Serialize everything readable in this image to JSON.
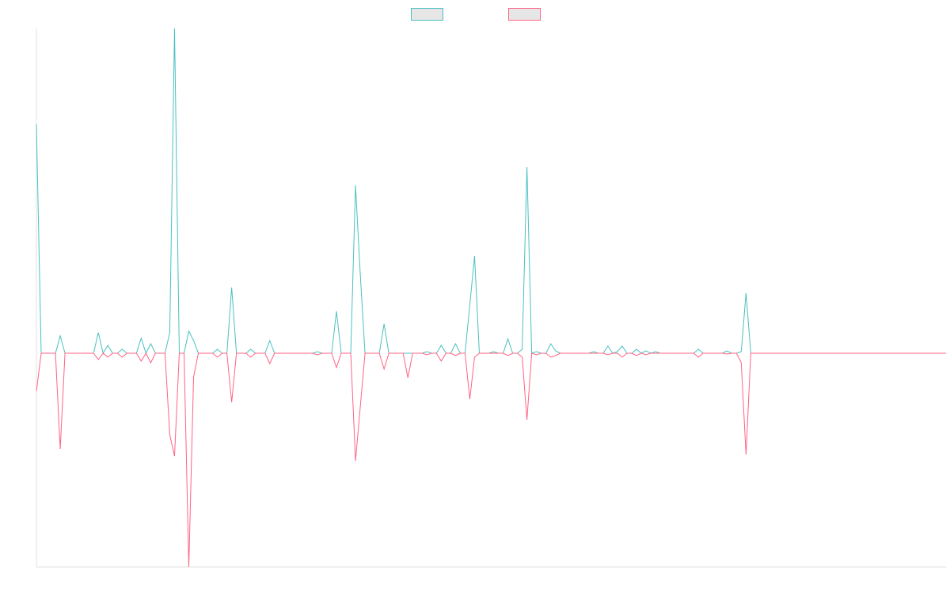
{
  "chart_data": {
    "type": "line",
    "categories": [
      null,
      null,
      null,
      null,
      null,
      null,
      null,
      null,
      null,
      null,
      null,
      null,
      null,
      null,
      null,
      null,
      null,
      null,
      null,
      null,
      null,
      null,
      null,
      null,
      null,
      null,
      null,
      null,
      null,
      null,
      null,
      null,
      null,
      null,
      null,
      null,
      null,
      null,
      null,
      null,
      null,
      null,
      null,
      null,
      null,
      null,
      null,
      null,
      null,
      null,
      null,
      null,
      null,
      null,
      null,
      null,
      null,
      null,
      null,
      null,
      null,
      null,
      null,
      null,
      null,
      null,
      null,
      null,
      null,
      null,
      null,
      null,
      null,
      null,
      null,
      null,
      null,
      null,
      null,
      null,
      null,
      null,
      null,
      null,
      null,
      null,
      null,
      null,
      null,
      null,
      null,
      null,
      null,
      null,
      null,
      null,
      null,
      null,
      null,
      null,
      null,
      null,
      null,
      null,
      null,
      null,
      null,
      null,
      null,
      null,
      null,
      null,
      null,
      null,
      null,
      null,
      null,
      null,
      null,
      null,
      null,
      null,
      null,
      null,
      null,
      null,
      null,
      null,
      null,
      null,
      null,
      null,
      null,
      null,
      null,
      null,
      null,
      null,
      null,
      null,
      null,
      null,
      null,
      null,
      null,
      null,
      null,
      null,
      null,
      null,
      null,
      null,
      null,
      null,
      null,
      null,
      null,
      null,
      null,
      null,
      null,
      null,
      null,
      null,
      null,
      null,
      null,
      null,
      null,
      null,
      null,
      null,
      null,
      null,
      null,
      null,
      null,
      null,
      null,
      null,
      null,
      null,
      null,
      null,
      null,
      null,
      null,
      null,
      null,
      null,
      null,
      null
    ],
    "series": [
      {
        "color": "#4bc0c0",
        "values": [
          289,
          0,
          0,
          0,
          0,
          22,
          0,
          0,
          0,
          0,
          0,
          0,
          0,
          26,
          0,
          10,
          0,
          0,
          5,
          0,
          0,
          0,
          19,
          0,
          12,
          0,
          0,
          0,
          26,
          410,
          0,
          0,
          28,
          16,
          0,
          0,
          0,
          0,
          5,
          0,
          0,
          83,
          0,
          0,
          0,
          5,
          0,
          0,
          0,
          16,
          0,
          0,
          0,
          0,
          0,
          0,
          0,
          0,
          0,
          2,
          0,
          0,
          0,
          53,
          0,
          0,
          0,
          212,
          100,
          0,
          0,
          0,
          0,
          37,
          0,
          0,
          0,
          0,
          0,
          0,
          0,
          0,
          2,
          0,
          0,
          10,
          0,
          0,
          12,
          0,
          0,
          61,
          123,
          0,
          0,
          0,
          2,
          0,
          0,
          18,
          0,
          0,
          5,
          235,
          0,
          2,
          0,
          0,
          12,
          3,
          0,
          0,
          0,
          0,
          0,
          0,
          0,
          2,
          0,
          0,
          9,
          0,
          2,
          9,
          0,
          0,
          5,
          0,
          3,
          0,
          2,
          0,
          0,
          0,
          0,
          0,
          0,
          0,
          0,
          5,
          0,
          0,
          0,
          0,
          0,
          3,
          0,
          0,
          2,
          76,
          0,
          0,
          0,
          0,
          0,
          0,
          0,
          0,
          0,
          0,
          0,
          0,
          0,
          0,
          0,
          0,
          0,
          0,
          0,
          0,
          0,
          0,
          0,
          0,
          0,
          0,
          0,
          0,
          0,
          0,
          0,
          0,
          0,
          0,
          0,
          0,
          0,
          0,
          0,
          0,
          0,
          0
        ]
      },
      {
        "color": "#ff6384",
        "values": [
          -48,
          0,
          0,
          0,
          0,
          -121,
          0,
          0,
          0,
          0,
          0,
          0,
          0,
          -8,
          0,
          -5,
          0,
          0,
          -5,
          0,
          0,
          0,
          -10,
          0,
          -12,
          0,
          0,
          0,
          -103,
          -130,
          0,
          0,
          -270,
          -30,
          0,
          0,
          0,
          0,
          -5,
          0,
          0,
          -62,
          0,
          0,
          0,
          -5,
          0,
          0,
          0,
          -13,
          0,
          0,
          0,
          0,
          0,
          0,
          0,
          0,
          0,
          -2,
          0,
          0,
          0,
          -18,
          0,
          0,
          0,
          -136,
          -68,
          0,
          0,
          0,
          0,
          -20,
          0,
          0,
          0,
          0,
          -31,
          0,
          0,
          0,
          -2,
          0,
          0,
          -10,
          0,
          0,
          -3,
          0,
          0,
          -58,
          -5,
          0,
          0,
          0,
          0,
          0,
          0,
          -3,
          0,
          0,
          -5,
          -84,
          0,
          -2,
          0,
          0,
          -5,
          -3,
          0,
          0,
          0,
          0,
          0,
          0,
          0,
          0,
          0,
          0,
          -2,
          0,
          0,
          -5,
          0,
          0,
          -3,
          0,
          -2,
          0,
          0,
          0,
          0,
          0,
          0,
          0,
          0,
          0,
          0,
          -5,
          0,
          0,
          0,
          0,
          0,
          -1,
          0,
          0,
          -12,
          -128,
          0,
          0,
          0,
          0,
          0,
          0,
          0,
          0,
          0,
          0,
          0,
          0,
          0,
          0,
          0,
          0,
          0,
          0,
          0,
          0,
          0,
          0,
          0,
          0,
          0,
          0,
          0,
          0,
          0,
          0,
          0,
          0,
          0,
          0,
          0,
          0,
          0,
          0,
          0,
          0,
          0,
          0
        ]
      }
    ],
    "ylim": [
      -270,
      410
    ],
    "legend": "top"
  }
}
